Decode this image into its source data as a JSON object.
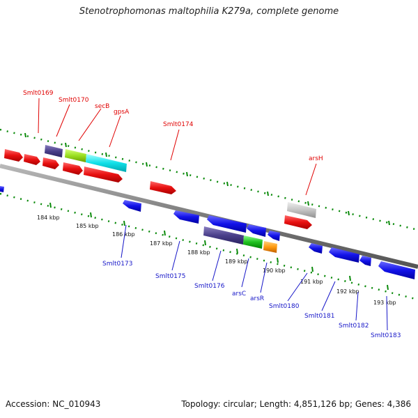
{
  "title": "Stenotrophomonas maltophilia K279a, complete genome",
  "footer": {
    "accession": "Accession: NC_010943",
    "stats": "Topology: circular; Length: 4,851,126 bp; Genes: 4,386"
  },
  "colors": {
    "forward_gene": "#e81010",
    "reverse_gene": "#1212e8",
    "backbone": "#7a7a7a",
    "tick": "#0a8a0a",
    "label_forward": "#e00000",
    "label_reverse": "#1515c8"
  },
  "kbp_labels": [
    "184 kbp",
    "185 kbp",
    "186 kbp",
    "187 kbp",
    "188 kbp",
    "189 kbp",
    "190 kbp",
    "191 kbp",
    "192 kbp",
    "193 kbp"
  ],
  "forward_labels": [
    "Smlt0169",
    "Smlt0170",
    "secB",
    "gpsA",
    "Smlt0174",
    "arsH"
  ],
  "reverse_labels": [
    "Smlt0173",
    "Smlt0175",
    "Smlt0176",
    "arsC",
    "arsR",
    "Smlt0180",
    "Smlt0181",
    "Smlt0182",
    "Smlt0183"
  ]
}
